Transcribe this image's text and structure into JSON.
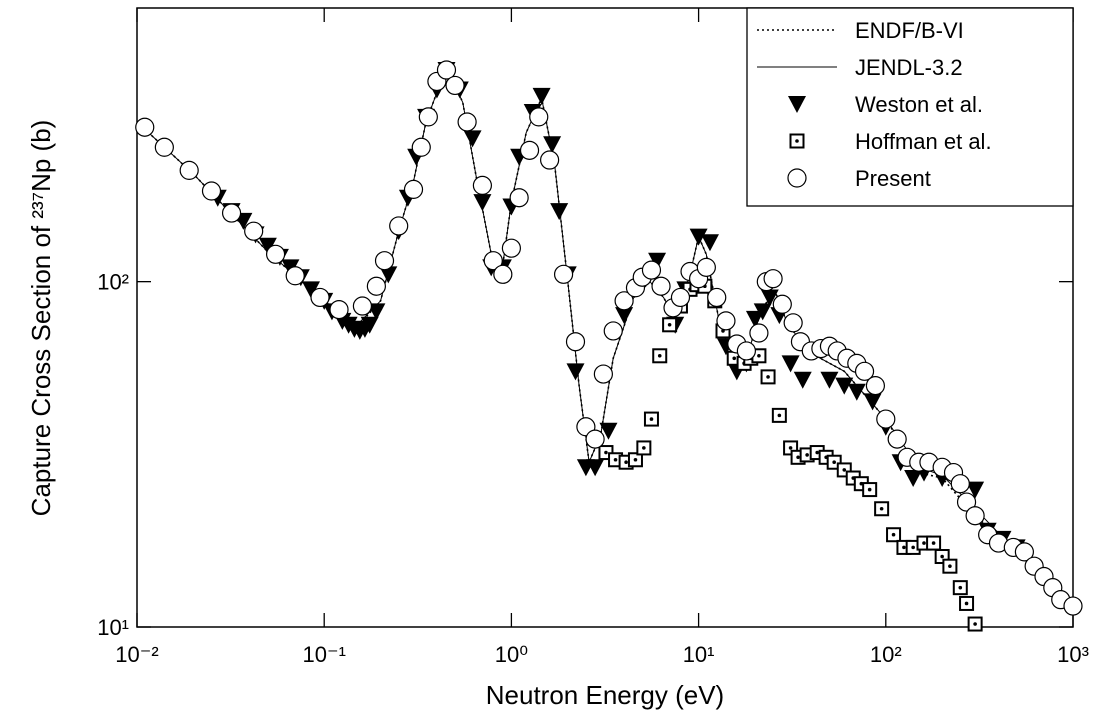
{
  "chart_data": {
    "type": "line",
    "xlabel": "Neutron Energy (eV)",
    "ylabel": "Capture Cross Section of ²³⁷Np  (b)",
    "xscale": "log",
    "yscale": "log",
    "xlim": [
      0.01,
      1000
    ],
    "ylim": [
      10,
      620
    ],
    "xticks": [
      {
        "value": 0.01,
        "label": "10⁻²"
      },
      {
        "value": 0.1,
        "label": "10⁻¹"
      },
      {
        "value": 1,
        "label": "10⁰"
      },
      {
        "value": 10,
        "label": "10¹"
      },
      {
        "value": 100,
        "label": "10²"
      },
      {
        "value": 1000,
        "label": "10³"
      }
    ],
    "yticks": [
      {
        "value": 10,
        "label": "10¹"
      },
      {
        "value": 100,
        "label": "10²"
      }
    ],
    "legend": "upper right",
    "series": [
      {
        "name": "ENDF/B-VI",
        "color": "#000000",
        "style": "dotted",
        "x": [
          0.01,
          0.02,
          0.05,
          0.1,
          0.15,
          0.2,
          0.25,
          0.3,
          0.35,
          0.45,
          0.55,
          0.65,
          0.8,
          0.9,
          1.0,
          1.2,
          1.45,
          1.7,
          2.0,
          2.3,
          2.6,
          3.0,
          3.5,
          4.5,
          5.5,
          6.5,
          7.5,
          9,
          10,
          11,
          13,
          16,
          18,
          22,
          26,
          30,
          40,
          60,
          100,
          150,
          200,
          300,
          500,
          1000
        ],
        "values": [
          290,
          205,
          122,
          88,
          74,
          88,
          140,
          195,
          290,
          420,
          330,
          200,
          112,
          112,
          170,
          270,
          340,
          220,
          100,
          50,
          30,
          36,
          60,
          90,
          100,
          90,
          78,
          105,
          135,
          120,
          75,
          57,
          60,
          85,
          92,
          75,
          62,
          55,
          40,
          28,
          27,
          21,
          16.5,
          11.5
        ]
      },
      {
        "name": "JENDL-3.2",
        "color": "#000000",
        "style": "solid",
        "x": [
          0.01,
          0.02,
          0.05,
          0.1,
          0.15,
          0.2,
          0.25,
          0.3,
          0.35,
          0.45,
          0.55,
          0.65,
          0.8,
          0.9,
          1.0,
          1.2,
          1.45,
          1.7,
          2.0,
          2.3,
          2.6,
          3.0,
          3.5,
          4.5,
          5.5,
          6.5,
          7.5,
          9,
          10,
          11,
          13,
          16,
          18,
          22,
          26,
          30,
          40,
          60,
          100,
          150,
          200,
          300,
          500,
          1000
        ],
        "values": [
          290,
          205,
          122,
          88,
          75,
          88,
          140,
          195,
          290,
          420,
          330,
          200,
          112,
          112,
          170,
          270,
          340,
          220,
          100,
          50,
          30,
          36,
          60,
          90,
          100,
          90,
          78,
          105,
          135,
          120,
          75,
          57,
          60,
          85,
          92,
          75,
          62,
          55,
          40,
          29,
          27.5,
          22,
          16.5,
          11.5
        ]
      },
      {
        "name": "Weston et al.",
        "color": "#000000",
        "marker": "triangle-down",
        "x": [
          0.027,
          0.032,
          0.037,
          0.043,
          0.05,
          0.058,
          0.066,
          0.075,
          0.085,
          0.1,
          0.11,
          0.125,
          0.135,
          0.145,
          0.155,
          0.165,
          0.175,
          0.19,
          0.22,
          0.25,
          0.28,
          0.31,
          0.35,
          0.4,
          0.45,
          0.53,
          0.62,
          0.7,
          0.78,
          0.9,
          1.0,
          1.1,
          1.3,
          1.45,
          1.65,
          1.8,
          2.0,
          2.2,
          2.5,
          2.8,
          3.3,
          4.0,
          5.0,
          6.0,
          7.5,
          8.5,
          10,
          11.5,
          14,
          16,
          18,
          20,
          22,
          24,
          27,
          31,
          36,
          50,
          60,
          70,
          85,
          100,
          120,
          140,
          160,
          200,
          240,
          300,
          350,
          420,
          500
        ],
        "values": [
          175,
          160,
          150,
          137,
          127,
          118,
          110,
          103,
          95,
          88,
          82,
          77,
          75,
          73,
          72,
          73,
          75,
          82,
          105,
          140,
          175,
          230,
          300,
          360,
          410,
          360,
          260,
          170,
          110,
          110,
          165,
          230,
          310,
          345,
          250,
          160,
          105,
          55,
          29,
          29,
          37,
          80,
          100,
          115,
          75,
          95,
          135,
          130,
          65,
          55,
          58,
          78,
          82,
          90,
          80,
          58,
          52,
          52,
          50,
          48,
          45,
          38,
          30,
          27,
          28,
          27,
          26,
          25,
          19,
          18,
          17
        ]
      },
      {
        "name": "Hoffman et al.",
        "color": "#000000",
        "marker": "square-dot",
        "x": [
          3.2,
          3.6,
          4.1,
          4.6,
          5.1,
          5.6,
          6.2,
          7.0,
          8.0,
          9.0,
          9.8,
          10.8,
          12.2,
          13.5,
          15.5,
          17.5,
          19,
          21,
          23.5,
          27,
          31,
          34,
          38,
          43,
          48,
          53,
          60,
          67,
          74,
          82,
          95,
          110,
          125,
          140,
          160,
          180,
          200,
          220,
          250,
          270,
          300
        ],
        "values": [
          32,
          30.5,
          30,
          30.5,
          33,
          40,
          61,
          75,
          85,
          95,
          98,
          97,
          88,
          72,
          60,
          58,
          60,
          61,
          53,
          41,
          33,
          31,
          31.5,
          32,
          31,
          30,
          28.5,
          27,
          26,
          25,
          22,
          18.5,
          17,
          17,
          17.5,
          17.5,
          16,
          15,
          13,
          11.7,
          10.2
        ]
      },
      {
        "name": "Present",
        "color": "#000000",
        "marker": "circle",
        "x": [
          0.011,
          0.014,
          0.019,
          0.025,
          0.032,
          0.042,
          0.055,
          0.07,
          0.095,
          0.12,
          0.16,
          0.19,
          0.21,
          0.25,
          0.3,
          0.33,
          0.36,
          0.4,
          0.45,
          0.5,
          0.58,
          0.7,
          0.8,
          0.9,
          1.0,
          1.1,
          1.25,
          1.4,
          1.6,
          1.9,
          2.2,
          2.5,
          2.8,
          3.1,
          3.5,
          4.0,
          4.6,
          5.0,
          5.6,
          6.3,
          7.3,
          8.0,
          9.0,
          10,
          11,
          12.5,
          14,
          16,
          18,
          21,
          23,
          25,
          28,
          32,
          35,
          40,
          45,
          50,
          55,
          62,
          70,
          77,
          88,
          100,
          115,
          130,
          150,
          170,
          200,
          230,
          250,
          270,
          300,
          350,
          400,
          480,
          550,
          620,
          700,
          780,
          860,
          1000
        ],
        "values": [
          280,
          245,
          210,
          183,
          158,
          140,
          120,
          104,
          90,
          83,
          85,
          97,
          115,
          145,
          185,
          245,
          300,
          380,
          410,
          370,
          290,
          190,
          115,
          105,
          125,
          175,
          240,
          300,
          225,
          105,
          67,
          38,
          35,
          54,
          72,
          88,
          96,
          103,
          108,
          97,
          84,
          90,
          107,
          102,
          110,
          90,
          77,
          66,
          63,
          71,
          100,
          102,
          86,
          76,
          67,
          63,
          64,
          65,
          63,
          60,
          58,
          55,
          50,
          40,
          35,
          31,
          30,
          30,
          29,
          28,
          26,
          23,
          21,
          18.5,
          17.5,
          17,
          16.5,
          15,
          14,
          13,
          12,
          11.5
        ]
      }
    ]
  }
}
